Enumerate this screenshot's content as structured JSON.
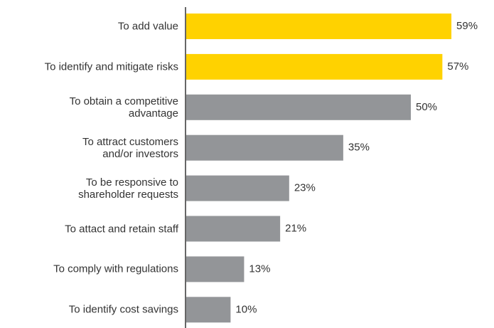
{
  "chart_data": {
    "type": "hbar",
    "categories": [
      "To add value",
      "To identify and mitigate risks",
      "To obtain a competitive\nadvantage",
      "To attract customers\nand/or investors",
      "To be responsive to\nshareholder requests",
      "To attact and retain staff",
      "To comply with regulations",
      "To identify cost savings"
    ],
    "values": [
      59,
      57,
      50,
      35,
      23,
      21,
      13,
      10
    ],
    "value_labels": [
      "59%",
      "57%",
      "50%",
      "35%",
      "23%",
      "21%",
      "13%",
      "10%"
    ],
    "colors": [
      "#ffd200",
      "#ffd200",
      "#939598",
      "#939598",
      "#939598",
      "#939598",
      "#939598",
      "#939598"
    ],
    "xlim": [
      0,
      100
    ]
  }
}
